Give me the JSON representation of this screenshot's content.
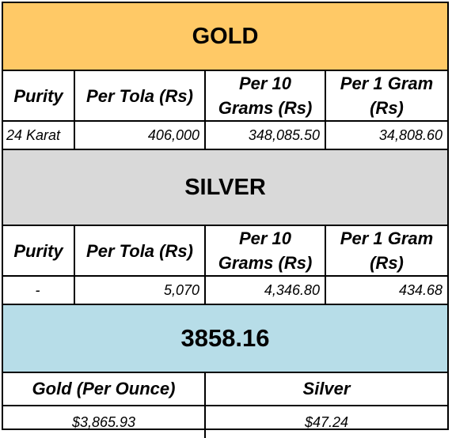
{
  "gold": {
    "title": "GOLD",
    "headers": [
      "Purity",
      "Per Tola (Rs)",
      "Per 10 Grams (Rs)",
      "Per 1 Gram (Rs)"
    ],
    "row": [
      "24 Karat",
      "406,000",
      "348,085.50",
      "34,808.60"
    ]
  },
  "silver": {
    "title": "SILVER",
    "headers": [
      "Purity",
      "Per Tola (Rs)",
      "Per 10 Grams (Rs)",
      "Per 1 Gram (Rs)"
    ],
    "row": [
      "-",
      "5,070",
      "4,346.80",
      "434.68"
    ]
  },
  "ounce": {
    "title": "3858.16",
    "headers": [
      "Gold (Per Ounce)",
      "Silver"
    ],
    "row": [
      "$3,865.93",
      "$47.24"
    ]
  },
  "colors": {
    "gold_banner": "#ffc966",
    "silver_banner": "#d9d9d9",
    "ounce_banner": "#b7dde8"
  }
}
